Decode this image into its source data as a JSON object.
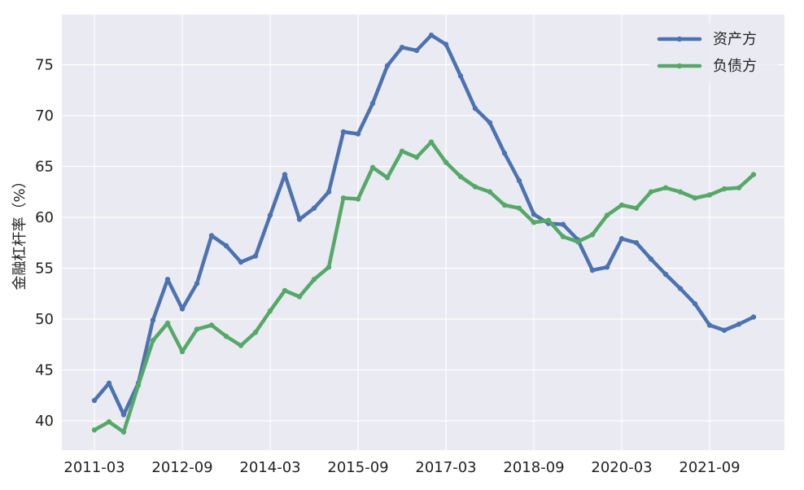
{
  "chart_data": {
    "type": "line",
    "title": "",
    "xlabel": "",
    "ylabel": "金融杠杆率（%）",
    "x_tick_labels": [
      "2011-03",
      "2012-09",
      "2014-03",
      "2015-09",
      "2017-03",
      "2018-09",
      "2020-03",
      "2021-09"
    ],
    "y_ticks": [
      40,
      45,
      50,
      55,
      60,
      65,
      70,
      75
    ],
    "ylim": [
      37.2,
      79.2
    ],
    "grid": true,
    "legend": "top-right",
    "x": [
      "2011-03",
      "2011-06",
      "2011-09",
      "2011-12",
      "2012-03",
      "2012-06",
      "2012-09",
      "2012-12",
      "2013-03",
      "2013-06",
      "2013-09",
      "2013-12",
      "2014-03",
      "2014-06",
      "2014-09",
      "2014-12",
      "2015-03",
      "2015-06",
      "2015-09",
      "2015-12",
      "2016-03",
      "2016-06",
      "2016-09",
      "2016-12",
      "2017-03",
      "2017-06",
      "2017-09",
      "2017-12",
      "2018-03",
      "2018-06",
      "2018-09",
      "2018-12",
      "2019-03",
      "2019-06",
      "2019-09",
      "2019-12",
      "2020-03",
      "2020-06",
      "2020-09",
      "2020-12",
      "2021-03",
      "2021-06",
      "2021-09",
      "2021-12",
      "2022-03",
      "2022-06"
    ],
    "series": [
      {
        "name": "资产方",
        "color": "#4c72b0",
        "values": [
          42.0,
          43.7,
          40.6,
          43.7,
          49.9,
          53.9,
          51.0,
          53.5,
          58.2,
          57.2,
          55.6,
          56.2,
          60.2,
          64.2,
          59.8,
          60.9,
          62.5,
          68.4,
          68.2,
          71.2,
          74.9,
          76.7,
          76.4,
          77.9,
          77.0,
          73.9,
          70.7,
          69.3,
          66.3,
          63.6,
          60.3,
          59.4,
          59.3,
          57.8,
          54.8,
          55.1,
          57.9,
          57.5,
          55.9,
          54.4,
          53.0,
          51.5,
          49.4,
          48.9,
          49.5,
          50.2
        ]
      },
      {
        "name": "负债方",
        "color": "#55a868",
        "values": [
          39.1,
          39.9,
          38.9,
          43.5,
          47.9,
          49.6,
          46.8,
          49.0,
          49.4,
          48.3,
          47.4,
          48.7,
          50.8,
          52.8,
          52.2,
          53.9,
          55.1,
          61.9,
          61.8,
          64.9,
          63.9,
          66.5,
          65.9,
          67.4,
          65.4,
          64.0,
          63.0,
          62.5,
          61.2,
          60.9,
          59.5,
          59.7,
          58.1,
          57.6,
          58.3,
          60.2,
          61.2,
          60.9,
          62.5,
          62.9,
          62.5,
          61.9,
          62.2,
          62.8,
          62.9,
          64.2
        ]
      }
    ]
  }
}
